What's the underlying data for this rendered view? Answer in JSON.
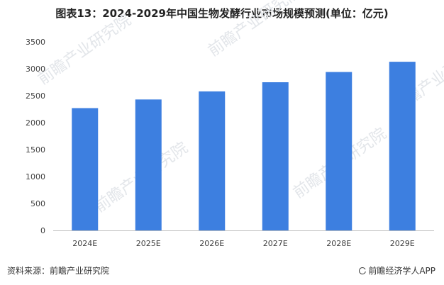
{
  "chart_data": {
    "type": "bar",
    "title": "图表13：2024-2029年中国生物发酵行业市场规模预测(单位：亿元)",
    "categories": [
      "2024E",
      "2025E",
      "2026E",
      "2027E",
      "2028E",
      "2029E"
    ],
    "values": [
      2270,
      2430,
      2580,
      2750,
      2940,
      3130
    ],
    "yticks": [
      0,
      500,
      1000,
      1500,
      2000,
      2500,
      3000,
      3500
    ],
    "ylim": [
      0,
      3500
    ],
    "grid": false,
    "bar_color": "#3d7fe0",
    "axis_color": "#bfbfbf"
  },
  "footer": {
    "source": "资料来源：前瞻产业研究院",
    "brand": "前瞻经济学人APP"
  },
  "watermark": {
    "text": "前瞻产业研究院",
    "color": "#e3e6ea"
  }
}
